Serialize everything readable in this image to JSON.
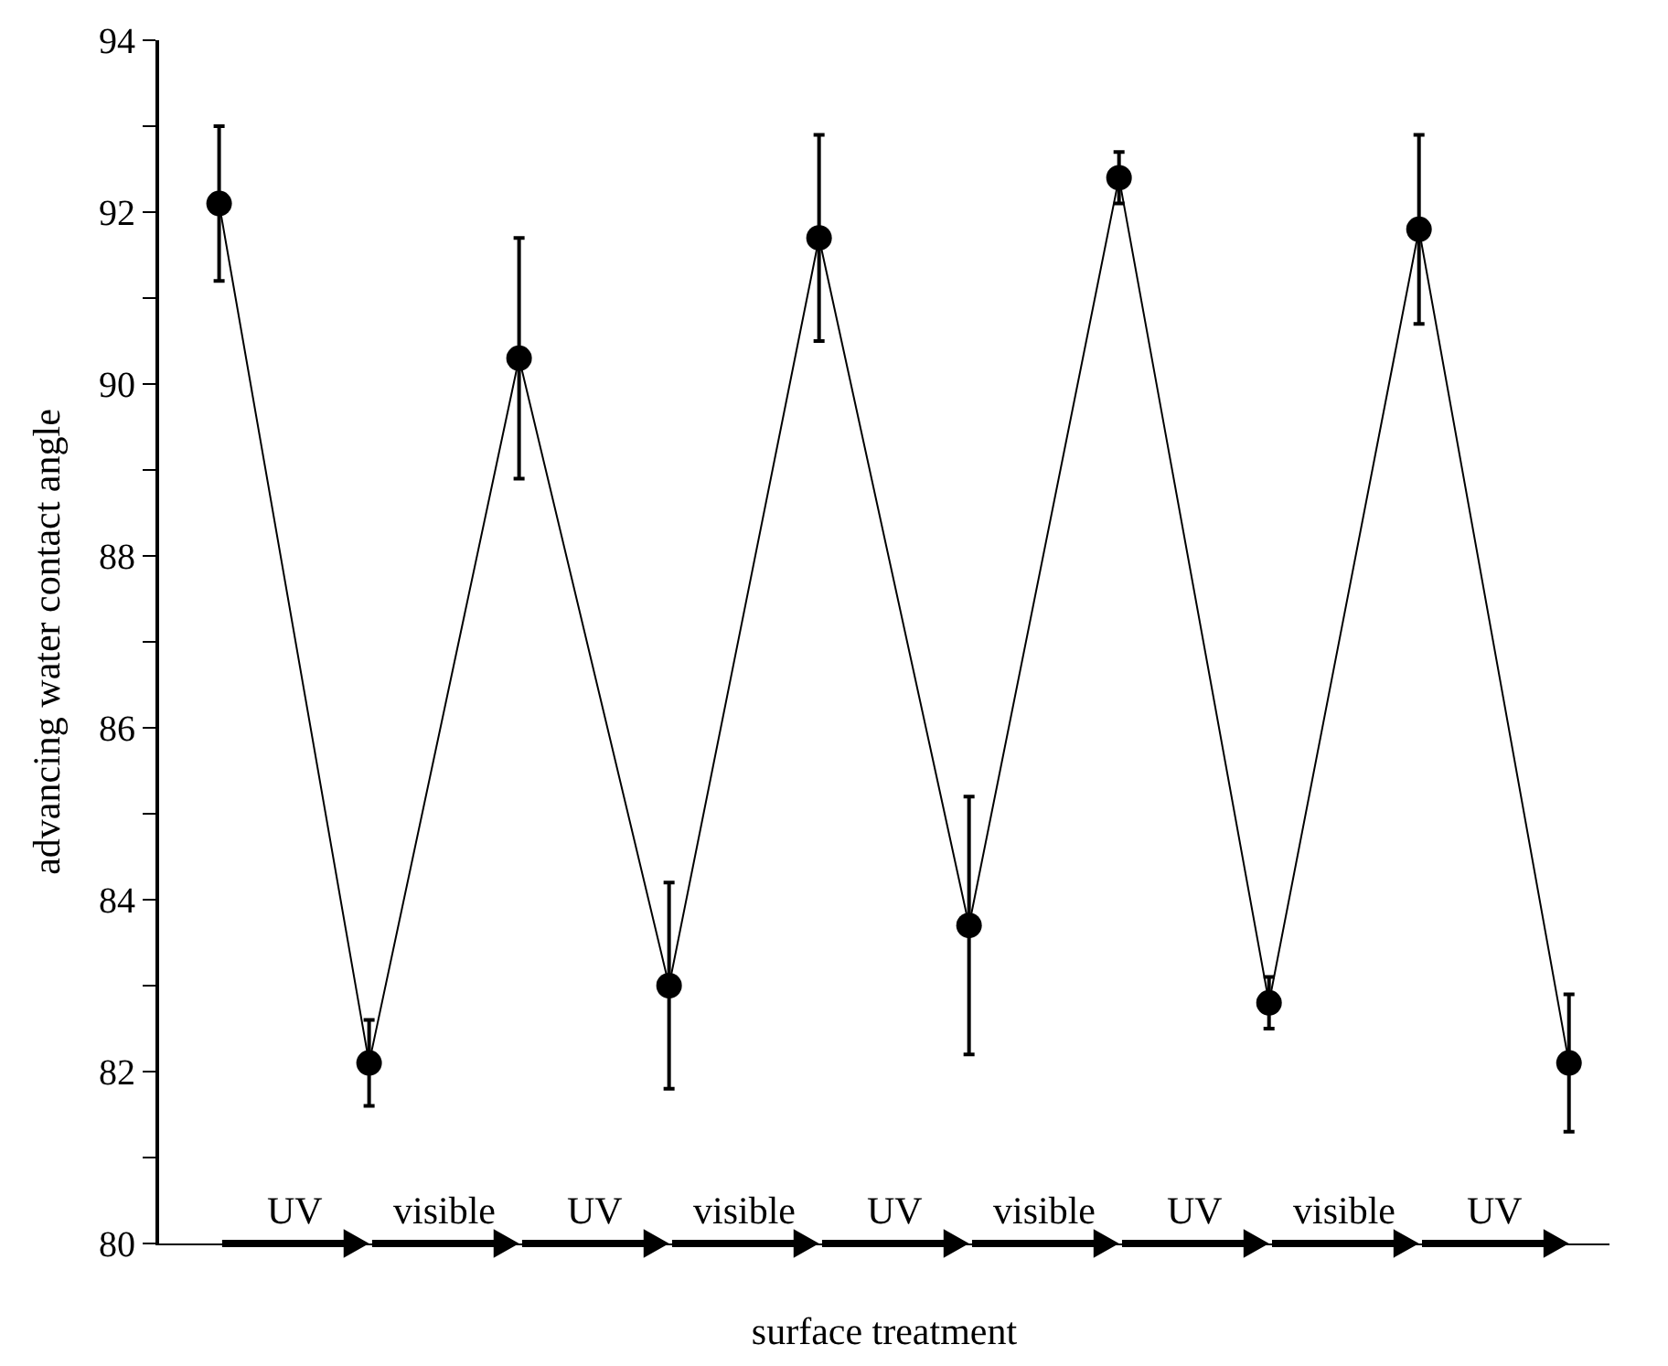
{
  "chart_data": {
    "type": "line",
    "xlabel": "surface treatment",
    "ylabel": "advancing water contact angle",
    "categories": [
      null,
      null,
      null,
      null,
      null,
      null,
      null,
      null,
      null,
      null
    ],
    "series": [
      {
        "color": "#000000",
        "values": [
          92.1,
          82.1,
          90.3,
          83.0,
          91.7,
          83.7,
          92.4,
          82.8,
          91.8,
          82.1
        ],
        "errors": [
          [
            91.2,
            93.0
          ],
          [
            81.6,
            82.6
          ],
          [
            88.9,
            91.7
          ],
          [
            81.8,
            84.2
          ],
          [
            90.5,
            92.9
          ],
          [
            82.2,
            85.2
          ],
          [
            92.1,
            92.7
          ],
          [
            82.5,
            83.1
          ],
          [
            90.7,
            92.9
          ],
          [
            81.3,
            82.9
          ]
        ]
      }
    ],
    "marker": "circle",
    "line_style": "solid",
    "ylim": [
      80,
      94
    ],
    "yticks": [
      80,
      {
        "value": 81,
        "label": null
      },
      82,
      {
        "value": 83,
        "label": null
      },
      84,
      {
        "value": 85,
        "label": null
      },
      86,
      {
        "value": 87,
        "label": null
      },
      88,
      {
        "value": 89,
        "label": null
      },
      90,
      {
        "value": 91,
        "label": null
      },
      92,
      {
        "value": 93,
        "label": null
      },
      94
    ],
    "tick_labels": "y",
    "legend": false,
    "annotations": [
      "UV",
      "visible",
      "UV",
      "visible",
      "UV",
      "visible",
      "UV",
      "visible",
      "UV"
    ]
  }
}
